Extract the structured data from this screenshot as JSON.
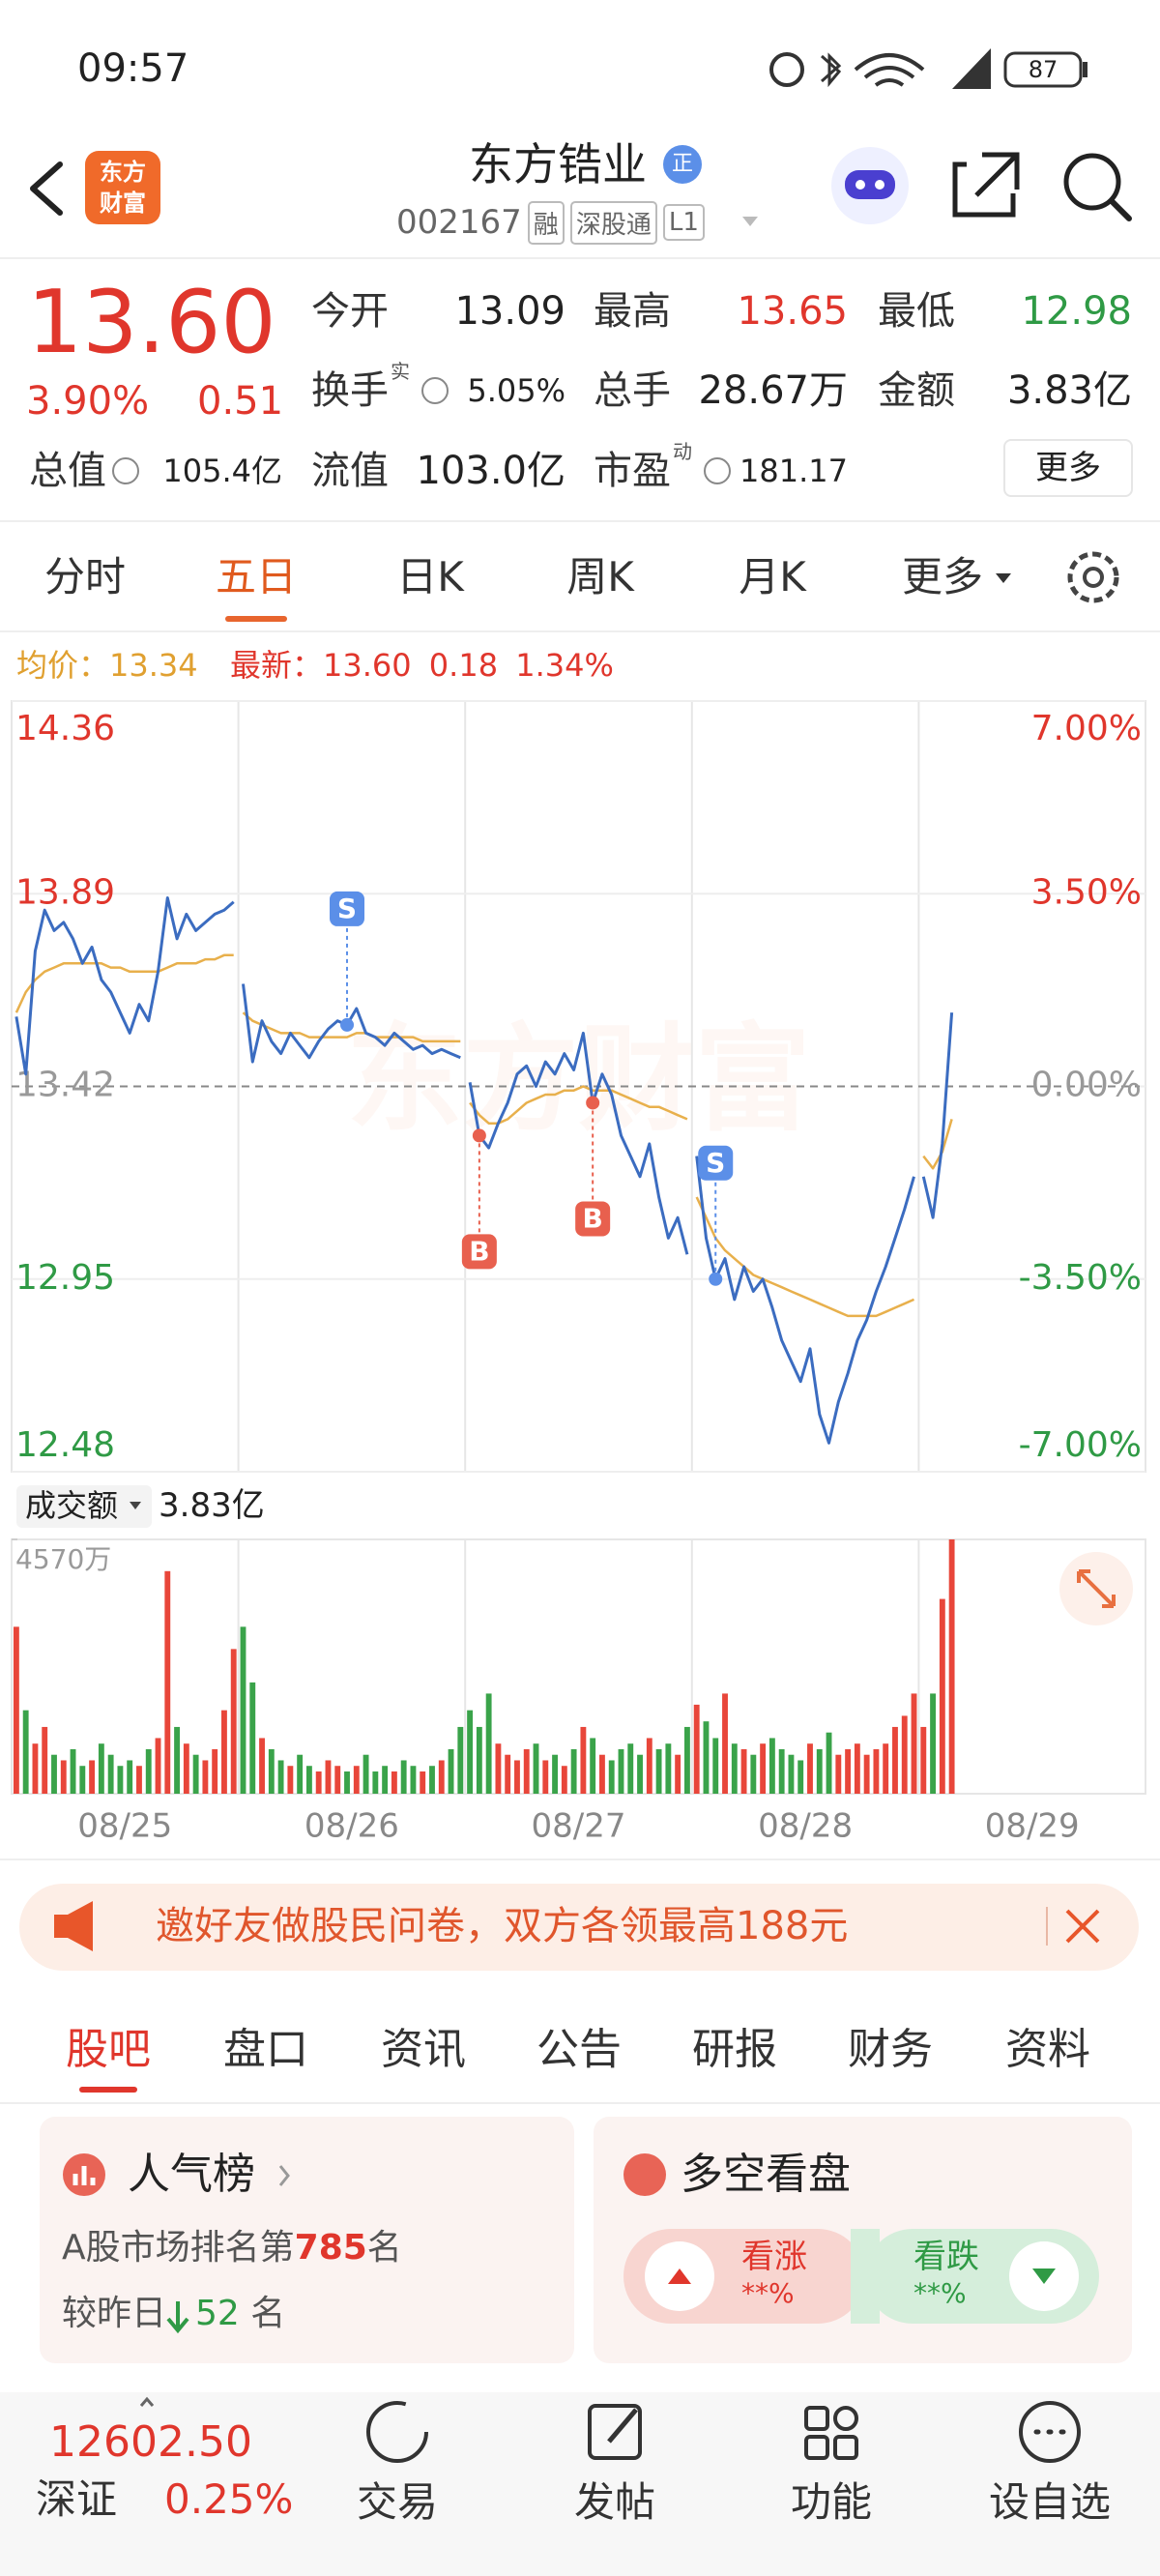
{
  "status_bar": {
    "time": "09:57",
    "battery": "87"
  },
  "header": {
    "logo": [
      "东方",
      "财富"
    ],
    "title": "东方锆业",
    "badge": "正",
    "code": "002167",
    "tags": [
      "融",
      "深股通",
      "L1"
    ]
  },
  "quote": {
    "price": "13.60",
    "change_pct": "3.90%",
    "change": "0.51",
    "color": "#e0362c",
    "fields": [
      {
        "label": "今开",
        "value": "13.09"
      },
      {
        "label": "最高",
        "value": "13.65",
        "color": "#e0362c"
      },
      {
        "label": "最低",
        "value": "12.98",
        "color": "#2f9a45"
      },
      {
        "label": "换手",
        "sup": "实",
        "value": "5.05%"
      },
      {
        "label": "总手",
        "value": "28.67万"
      },
      {
        "label": "金额",
        "value": "3.83亿"
      },
      {
        "label": "总值",
        "value": "105.4亿"
      },
      {
        "label": "流值",
        "value": "103.0亿"
      },
      {
        "label": "市盈",
        "sup": "动",
        "value": "181.17"
      }
    ],
    "more": "更多"
  },
  "chart_tabs": {
    "items": [
      "分时",
      "五日",
      "日K",
      "周K",
      "月K",
      "更多"
    ],
    "active": 1
  },
  "chart_info": {
    "avg_label": "均价：",
    "avg": "13.34",
    "latest_label": "最新：",
    "latest": "13.60",
    "change": "0.18",
    "change_pct": "1.34%"
  },
  "chart_data": {
    "type": "line",
    "watermark": "东方财富",
    "categories": [
      "08/25",
      "08/26",
      "08/27",
      "08/28",
      "08/29"
    ],
    "price_color": "#3b6cc0",
    "average_color": "#e8b04c",
    "up_color": "#e8463a",
    "down_color": "#3aa34a",
    "price": [
      [
        13.59,
        13.45,
        13.75,
        13.85,
        13.8,
        13.82,
        13.78,
        13.72,
        13.76,
        13.68,
        13.65,
        13.6,
        13.55,
        13.62,
        13.58,
        13.7,
        13.88,
        13.78,
        13.84,
        13.8,
        13.82,
        13.84,
        13.85,
        13.87
      ],
      [
        13.67,
        13.48,
        13.58,
        13.53,
        13.5,
        13.55,
        13.52,
        13.49,
        13.53,
        13.56,
        13.58,
        13.57,
        13.61,
        13.55,
        13.54,
        13.52,
        13.55,
        13.53,
        13.51,
        13.52,
        13.5,
        13.51,
        13.5,
        13.49
      ],
      [
        13.43,
        13.3,
        13.27,
        13.33,
        13.38,
        13.45,
        13.47,
        13.42,
        13.48,
        13.45,
        13.5,
        13.46,
        13.55,
        13.38,
        13.45,
        13.4,
        13.3,
        13.25,
        13.2,
        13.28,
        13.15,
        13.05,
        13.1,
        13.01
      ],
      [
        13.25,
        13.05,
        12.95,
        13.0,
        12.9,
        12.98,
        12.92,
        12.95,
        12.88,
        12.8,
        12.75,
        12.7,
        12.78,
        12.62,
        12.55,
        12.65,
        12.72,
        12.8,
        12.85,
        12.92,
        12.98,
        13.05,
        13.12,
        13.2
      ],
      [
        13.2,
        13.1,
        13.28,
        13.6
      ]
    ],
    "average": [
      [
        13.6,
        13.65,
        13.68,
        13.7,
        13.71,
        13.72,
        13.72,
        13.72,
        13.72,
        13.72,
        13.71,
        13.71,
        13.7,
        13.7,
        13.7,
        13.7,
        13.71,
        13.72,
        13.72,
        13.72,
        13.73,
        13.73,
        13.74,
        13.74
      ],
      [
        13.6,
        13.58,
        13.57,
        13.56,
        13.55,
        13.55,
        13.55,
        13.54,
        13.54,
        13.54,
        13.54,
        13.54,
        13.55,
        13.55,
        13.54,
        13.54,
        13.54,
        13.54,
        13.54,
        13.53,
        13.53,
        13.53,
        13.53,
        13.53
      ],
      [
        13.38,
        13.35,
        13.33,
        13.33,
        13.34,
        13.36,
        13.38,
        13.39,
        13.4,
        13.4,
        13.41,
        13.41,
        13.42,
        13.41,
        13.41,
        13.41,
        13.4,
        13.39,
        13.38,
        13.37,
        13.37,
        13.36,
        13.35,
        13.34
      ],
      [
        13.15,
        13.1,
        13.05,
        13.02,
        13.0,
        12.98,
        12.96,
        12.95,
        12.94,
        12.93,
        12.92,
        12.91,
        12.9,
        12.89,
        12.88,
        12.87,
        12.86,
        12.86,
        12.86,
        12.86,
        12.87,
        12.88,
        12.89,
        12.9
      ],
      [
        13.25,
        13.22,
        13.26,
        13.34
      ]
    ],
    "volume": [
      [
        3000,
        1500,
        900,
        1200,
        700,
        600,
        800,
        500,
        600,
        900,
        700,
        500,
        600,
        500,
        800,
        1000,
        4000,
        1200,
        900,
        700,
        600,
        800,
        1500,
        2600
      ],
      [
        3000,
        2000,
        1000,
        800,
        600,
        500,
        700,
        500,
        400,
        600,
        500,
        400,
        500,
        700,
        400,
        500,
        400,
        600,
        500,
        400,
        500,
        600,
        800,
        1200
      ],
      [
        1500,
        1200,
        1800,
        900,
        700,
        600,
        800,
        900,
        600,
        700,
        500,
        800,
        1200,
        1000,
        700,
        600,
        800,
        900,
        700,
        1000,
        800,
        900,
        700,
        1200
      ],
      [
        1600,
        1300,
        1000,
        1800,
        900,
        800,
        700,
        900,
        1000,
        800,
        700,
        600,
        900,
        800,
        1100,
        700,
        800,
        900,
        700,
        800,
        900,
        1200,
        1400,
        1800
      ],
      [
        1200,
        1800,
        3500,
        4570
      ]
    ],
    "ylim": [
      12.48,
      14.36
    ],
    "yticks": [
      14.36,
      13.89,
      13.42,
      12.95,
      12.48
    ],
    "y2lim": [
      -7,
      7
    ],
    "y2ticks": [
      {
        "value": 7,
        "label": "7.00%"
      },
      {
        "value": 3.5,
        "label": "3.50%"
      },
      {
        "value": 0,
        "label": "0.00%"
      },
      {
        "value": -3.5,
        "label": "-3.50%"
      },
      {
        "value": -7,
        "label": "-7.00%"
      }
    ],
    "volume_ylim": [
      0,
      4570
    ],
    "volume_yticks": [
      {
        "value": 4570,
        "label": "4570万"
      }
    ],
    "trades": [
      {
        "label": "S",
        "day": 1,
        "index": 11,
        "color": "#5b8fe8"
      },
      {
        "label": "B",
        "day": 2,
        "index": 1,
        "color": "#e8604e"
      },
      {
        "label": "B",
        "day": 2,
        "index": 13,
        "color": "#e8604e"
      },
      {
        "label": "S",
        "day": 3,
        "index": 2,
        "color": "#5b8fe8"
      }
    ]
  },
  "volume_label": {
    "name": "成交额",
    "value": "3.83亿"
  },
  "banner": {
    "text": "邀好友做股民问卷，双方各领最高188元"
  },
  "section_tabs": {
    "items": [
      "股吧",
      "盘口",
      "资讯",
      "公告",
      "研报",
      "财务",
      "资料"
    ],
    "active": 0
  },
  "cards": {
    "popularity": {
      "title": "人气榜",
      "rank_prefix": "A股市场排名第",
      "rank": "785",
      "rank_suffix": "名",
      "compare_prefix": "较昨日",
      "compare": "52",
      "compare_suffix": "名"
    },
    "sentiment": {
      "title": "多空看盘",
      "bull": "看涨",
      "bull_pct": "**%",
      "bear": "看跌",
      "bear_pct": "**%"
    }
  },
  "bottom_nav": {
    "index_value": "12602.50",
    "index_name": "深证",
    "index_change": "0.25%",
    "items": [
      "交易",
      "发帖",
      "功能",
      "设自选"
    ]
  }
}
